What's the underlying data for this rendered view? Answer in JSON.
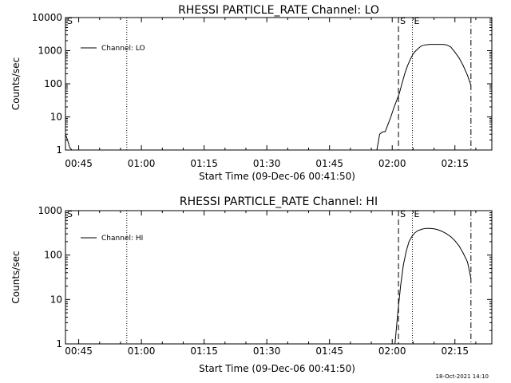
{
  "footer_timestamp": "18-Oct-2021 14:10",
  "chart_data": [
    {
      "type": "line",
      "title": "RHESSI PARTICLE_RATE Channel: LO",
      "xlabel": "Start Time (09-Dec-06 00:41:50)",
      "ylabel": "Counts/sec",
      "legend": "Channel: LO",
      "legend_position": "top-left",
      "yscale": "log",
      "ylim": [
        1,
        10000
      ],
      "ytick_labels": [
        "1",
        "10",
        "100",
        "1000",
        "10000"
      ],
      "xlim": [
        "00:41:50",
        "02:23:50"
      ],
      "xtick_labels": [
        "00:45",
        "01:00",
        "01:15",
        "01:30",
        "01:45",
        "02:00",
        "02:15"
      ],
      "markers": [
        {
          "time": "00:41:50",
          "label": "S",
          "style": "dotted"
        },
        {
          "time": "00:56:30",
          "label": "",
          "style": "dotted"
        },
        {
          "time": "02:01:30",
          "label": "S",
          "style": "dashed"
        },
        {
          "time": "02:04:50",
          "label": "E",
          "style": "dotted"
        },
        {
          "time": "02:18:50",
          "label": "",
          "style": "dashdot"
        }
      ],
      "series": [
        {
          "name": "Channel: LO",
          "x": [
            "00:41:50",
            "00:42:20",
            "00:42:50",
            "00:43:20",
            "01:56:20",
            "01:57:00",
            "01:57:40",
            "01:58:20",
            "01:59:00",
            "01:59:40",
            "02:00:20",
            "02:01:00",
            "02:01:40",
            "02:02:20",
            "02:03:00",
            "02:03:40",
            "02:04:20",
            "02:05:00",
            "02:05:40",
            "02:06:20",
            "02:07:00",
            "02:08:00",
            "02:09:00",
            "02:10:00",
            "02:11:00",
            "02:12:00",
            "02:13:00",
            "02:14:00",
            "02:15:00",
            "02:16:00",
            "02:17:00",
            "02:18:00",
            "02:18:50"
          ],
          "y": [
            3,
            2,
            1.2,
            1,
            1,
            3,
            3.5,
            3.6,
            6,
            10,
            18,
            30,
            50,
            100,
            200,
            350,
            550,
            800,
            1000,
            1200,
            1400,
            1500,
            1550,
            1550,
            1550,
            1550,
            1500,
            1300,
            900,
            600,
            350,
            180,
            90
          ]
        }
      ]
    },
    {
      "type": "line",
      "title": "RHESSI PARTICLE_RATE Channel: HI",
      "xlabel": "Start Time (09-Dec-06 00:41:50)",
      "ylabel": "Counts/sec",
      "legend": "Channel: HI",
      "legend_position": "top-left",
      "yscale": "log",
      "ylim": [
        1,
        1000
      ],
      "ytick_labels": [
        "1",
        "10",
        "100",
        "1000"
      ],
      "xlim": [
        "00:41:50",
        "02:23:50"
      ],
      "xtick_labels": [
        "00:45",
        "01:00",
        "01:15",
        "01:30",
        "01:45",
        "02:00",
        "02:15"
      ],
      "markers": [
        {
          "time": "00:41:50",
          "label": "S",
          "style": "dotted"
        },
        {
          "time": "00:56:30",
          "label": "",
          "style": "dotted"
        },
        {
          "time": "02:01:30",
          "label": "S",
          "style": "dashed"
        },
        {
          "time": "02:04:50",
          "label": "E",
          "style": "dotted"
        },
        {
          "time": "02:18:50",
          "label": "",
          "style": "dashdot"
        }
      ],
      "series": [
        {
          "name": "Channel: HI",
          "x": [
            "02:00:40",
            "02:01:20",
            "02:02:00",
            "02:02:40",
            "02:03:20",
            "02:04:00",
            "02:04:40",
            "02:05:20",
            "02:06:00",
            "02:07:00",
            "02:08:00",
            "02:09:00",
            "02:10:00",
            "02:11:00",
            "02:12:00",
            "02:13:00",
            "02:14:00",
            "02:15:00",
            "02:16:00",
            "02:17:00",
            "02:18:00",
            "02:18:50"
          ],
          "y": [
            1,
            5,
            20,
            60,
            120,
            200,
            260,
            310,
            350,
            380,
            400,
            400,
            390,
            370,
            340,
            300,
            260,
            210,
            160,
            110,
            70,
            30
          ]
        }
      ]
    }
  ]
}
